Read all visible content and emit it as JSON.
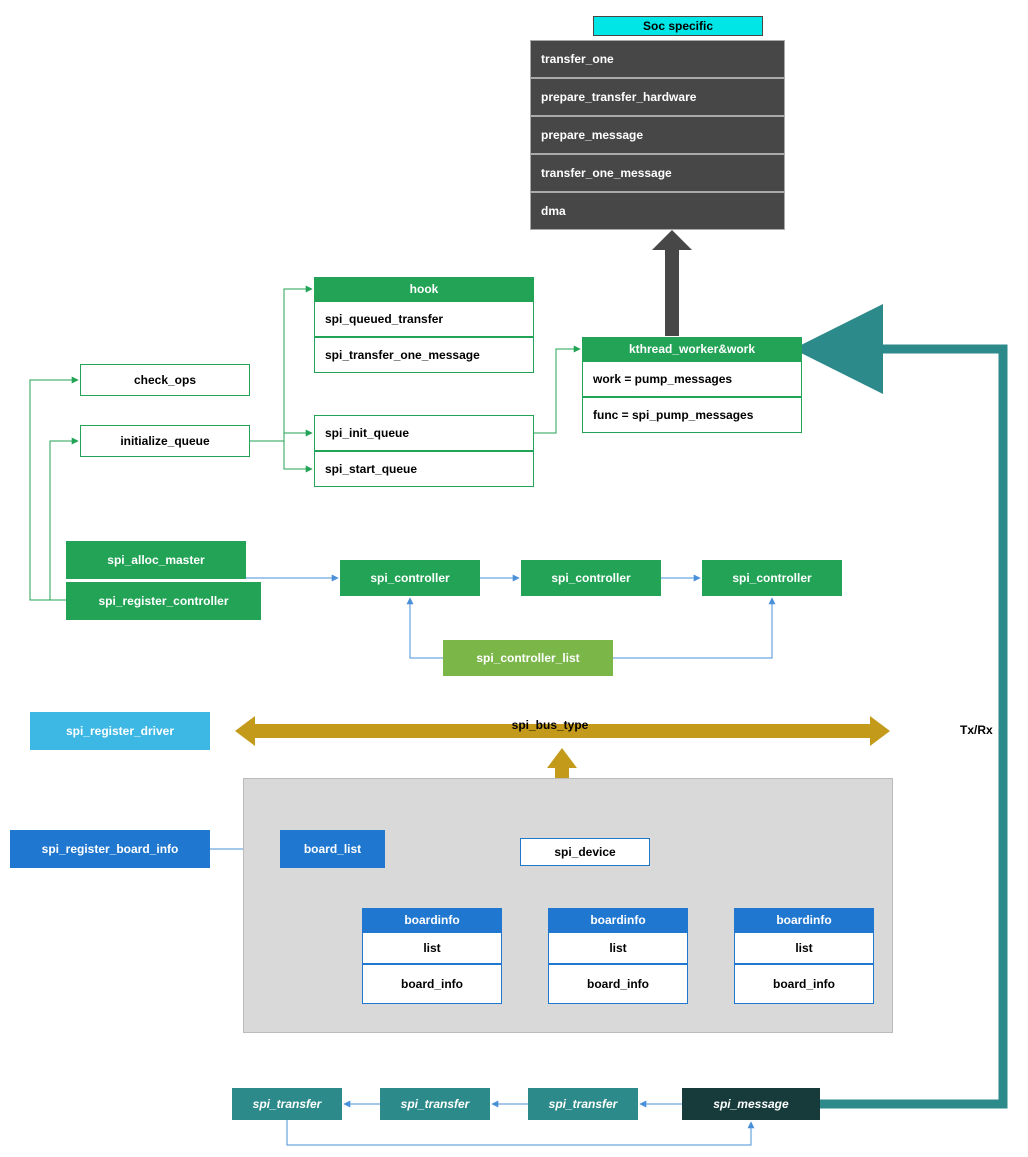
{
  "colors": {
    "green": "#22a356",
    "olive": "#7ab648",
    "darkCell": "#474747",
    "cyan": "#00e6e6",
    "lblue": "#3db7e4",
    "blue": "#1f77d0",
    "teal": "#2d8a8a",
    "darkTeal": "#173a3a",
    "gold": "#c49a1a",
    "grayBg": "#d9d9d9",
    "thickTeal": "#2d8a8a",
    "edgeBlue": "#4a90d9",
    "edgeGreen": "#22a356",
    "arrowDark": "#474747"
  },
  "soc": {
    "header": "Soc specific",
    "rows": [
      "transfer_one",
      "prepare_transfer_hardware",
      "prepare_message",
      "transfer_one_message",
      "dma"
    ]
  },
  "hook": {
    "header": "hook",
    "rows": [
      "spi_queued_transfer",
      "spi_transfer_one_message"
    ]
  },
  "queue": {
    "rows": [
      "spi_init_queue",
      "spi_start_queue"
    ]
  },
  "check_ops": "check_ops",
  "initialize_queue": "initialize_queue",
  "kworker": {
    "header": "kthread_worker&work",
    "rows": [
      "work = pump_messages",
      "func = spi_pump_messages"
    ]
  },
  "spi_alloc_master": "spi_alloc_master",
  "spi_register_controller": "spi_register_controller",
  "spi_controller": [
    "spi_controller",
    "spi_controller",
    "spi_controller"
  ],
  "spi_controller_list": "spi_controller_list",
  "spi_register_driver": "spi_register_driver",
  "spi_bus_type": "spi_bus_type",
  "spi_register_board_info": "spi_register_board_info",
  "board_list": "board_list",
  "spi_device": "spi_device",
  "boardinfo": {
    "header": "boardinfo",
    "rows": [
      "list",
      "board_info"
    ]
  },
  "spi_transfer": "spi_transfer",
  "spi_message": "spi_message",
  "txrx": "Tx/Rx"
}
